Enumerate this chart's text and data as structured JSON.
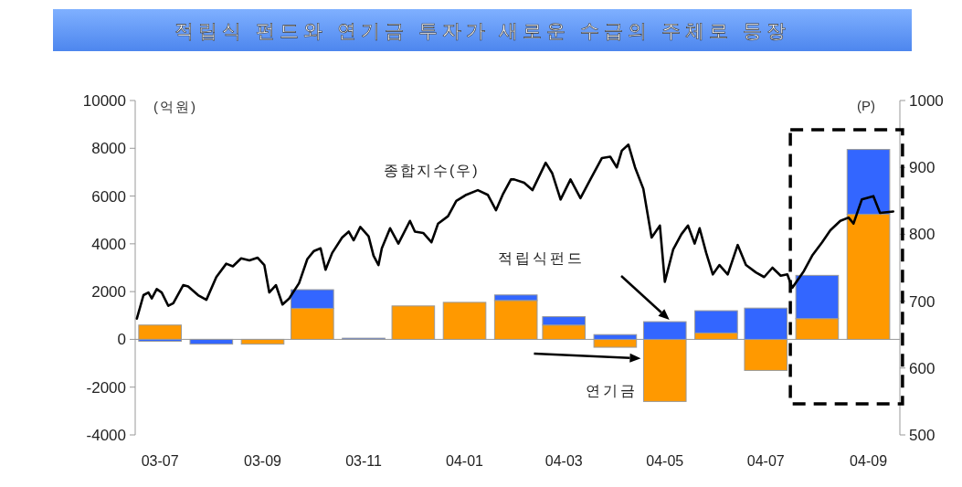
{
  "chart_data": {
    "type": "bar",
    "title": "적립식 펀드와 연기금 투자가 새로운 수급의 주체로 등장",
    "ylabel": "(억원)",
    "y2label": "(P)",
    "stacked": true,
    "x": [
      "2003-07-15",
      "2003-08-15",
      "2003-09-15",
      "2003-10-15",
      "2003-11-15",
      "2003-12-15",
      "2004-01-15",
      "2004-02-15",
      "2004-03-15",
      "2004-04-15",
      "2004-05-15",
      "2004-06-15",
      "2004-07-15",
      "2004-08-15",
      "2004-09-15"
    ],
    "xlim": [
      "2003-06-30",
      "2004-10-04"
    ],
    "xticks": [
      {
        "value": "2003-07-15",
        "label": "03-07"
      },
      {
        "value": "2003-09-15",
        "label": "03-09"
      },
      {
        "value": "2003-11-15",
        "label": "03-11"
      },
      {
        "value": "2004-01-15",
        "label": "04-01"
      },
      {
        "value": "2004-03-15",
        "label": "04-03"
      },
      {
        "value": "2004-05-15",
        "label": "04-05"
      },
      {
        "value": "2004-07-15",
        "label": "04-07"
      },
      {
        "value": "2004-09-15",
        "label": "04-09"
      }
    ],
    "ylim": [
      -4000,
      10000
    ],
    "yticks": [
      -4000,
      -2000,
      0,
      2000,
      4000,
      6000,
      8000,
      10000
    ],
    "y2lim": [
      500,
      1000
    ],
    "y2ticks": [
      500,
      600,
      700,
      800,
      900,
      1000
    ],
    "legend": false,
    "series": [
      {
        "name": "연기금",
        "color": "#ff9900",
        "values": [
          600,
          0,
          -200,
          1300,
          0,
          1400,
          1550,
          1630,
          600,
          -330,
          -2600,
          270,
          -1300,
          870,
          5240
        ]
      },
      {
        "name": "적립식펀드",
        "color": "#3366ff",
        "values": [
          -80,
          -200,
          0,
          780,
          50,
          0,
          0,
          230,
          350,
          200,
          740,
          930,
          1310,
          1810,
          2710
        ]
      },
      {
        "name": "종합지수(우)",
        "type": "line",
        "axis": "y2",
        "color": "#000000",
        "line_style": "solid",
        "marker": "none",
        "x": [
          "2003-07-01",
          "2003-07-05",
          "2003-07-08",
          "2003-07-10",
          "2003-07-13",
          "2003-07-16",
          "2003-07-20",
          "2003-07-23",
          "2003-07-29",
          "2003-08-01",
          "2003-08-07",
          "2003-08-12",
          "2003-08-18",
          "2003-08-24",
          "2003-08-28",
          "2003-09-02",
          "2003-09-07",
          "2003-09-12",
          "2003-09-16",
          "2003-09-19",
          "2003-09-23",
          "2003-09-27",
          "2003-10-01",
          "2003-10-07",
          "2003-10-12",
          "2003-10-16",
          "2003-10-20",
          "2003-10-23",
          "2003-10-27",
          "2003-11-02",
          "2003-11-06",
          "2003-11-09",
          "2003-11-13",
          "2003-11-18",
          "2003-11-21",
          "2003-11-24",
          "2003-11-26",
          "2003-12-01",
          "2003-12-06",
          "2003-12-13",
          "2003-12-16",
          "2003-12-21",
          "2003-12-26",
          "2003-12-30",
          "2004-01-05",
          "2004-01-10",
          "2004-01-16",
          "2004-01-23",
          "2004-01-29",
          "2004-02-03",
          "2004-02-07",
          "2004-02-12",
          "2004-02-14",
          "2004-02-20",
          "2004-02-25",
          "2004-03-04",
          "2004-03-08",
          "2004-03-13",
          "2004-03-19",
          "2004-03-25",
          "2004-03-31",
          "2004-04-07",
          "2004-04-12",
          "2004-04-16",
          "2004-04-19",
          "2004-04-23",
          "2004-04-27",
          "2004-05-02",
          "2004-05-07",
          "2004-05-12",
          "2004-05-15",
          "2004-05-20",
          "2004-05-25",
          "2004-05-29",
          "2004-06-02",
          "2004-06-05",
          "2004-06-09",
          "2004-06-13",
          "2004-06-17",
          "2004-06-22",
          "2004-06-28",
          "2004-07-03",
          "2004-07-09",
          "2004-07-14",
          "2004-07-19",
          "2004-07-24",
          "2004-07-28",
          "2004-07-31",
          "2004-08-07",
          "2004-08-12",
          "2004-08-18",
          "2004-08-23",
          "2004-08-29",
          "2004-09-03",
          "2004-09-06",
          "2004-09-11",
          "2004-09-18",
          "2004-09-22",
          "2004-09-30"
        ],
        "values": [
          674,
          709,
          713,
          704,
          718,
          713,
          693,
          697,
          724,
          722,
          709,
          702,
          736,
          756,
          752,
          764,
          761,
          765,
          754,
          713,
          724,
          695,
          704,
          727,
          763,
          775,
          779,
          747,
          772,
          795,
          804,
          791,
          811,
          797,
          768,
          754,
          779,
          809,
          786,
          820,
          804,
          802,
          788,
          816,
          827,
          850,
          859,
          866,
          859,
          836,
          859,
          882,
          882,
          877,
          866,
          907,
          891,
          852,
          882,
          854,
          882,
          914,
          916,
          900,
          925,
          934,
          900,
          868,
          795,
          813,
          729,
          777,
          800,
          813,
          786,
          809,
          772,
          740,
          754,
          740,
          784,
          754,
          743,
          736,
          750,
          738,
          740,
          720,
          745,
          768,
          788,
          806,
          820,
          825,
          816,
          852,
          857,
          832,
          834
        ]
      }
    ]
  }
}
